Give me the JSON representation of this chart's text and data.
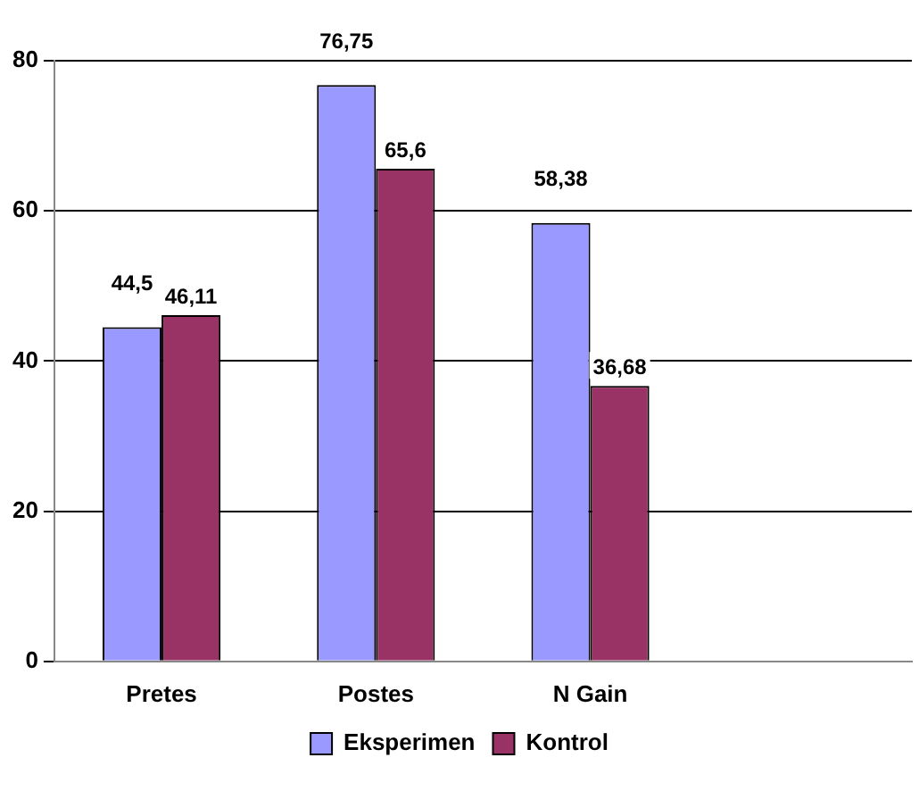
{
  "chart_data": {
    "type": "bar",
    "categories": [
      "Pretes",
      "Postes",
      "N Gain",
      null
    ],
    "series": [
      {
        "name": "Eksperimen",
        "color": "#9999ff",
        "values": [
          44.5,
          76.75,
          58.38,
          null
        ],
        "value_labels": [
          "44,5",
          "76,75",
          "58,38",
          null
        ]
      },
      {
        "name": "Kontrol",
        "color": "#993366",
        "values": [
          46.11,
          65.6,
          36.68,
          null
        ],
        "value_labels": [
          "46,11",
          "65,6",
          "36,68",
          null
        ]
      }
    ],
    "ylim": [
      0,
      80
    ],
    "yticks": [
      0,
      20,
      40,
      60,
      80
    ],
    "grid": "y",
    "legend": "bottom"
  }
}
